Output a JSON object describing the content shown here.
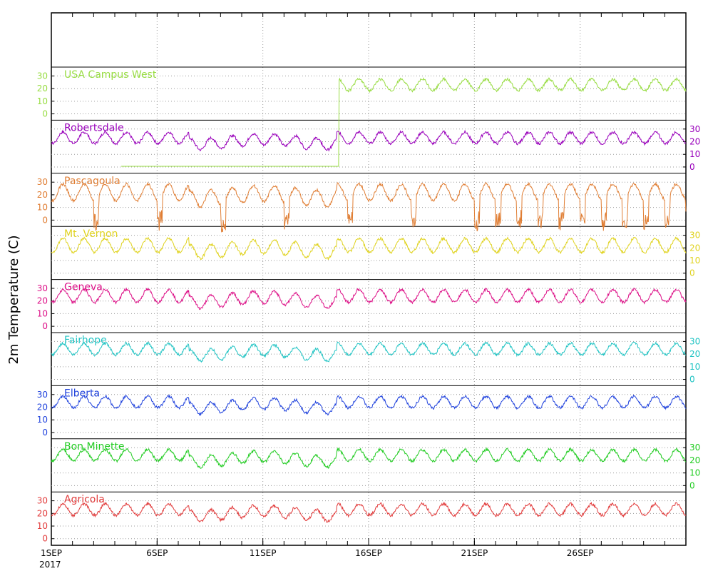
{
  "chart_data": {
    "type": "line",
    "ylabel": "2m Temperature (C)",
    "x_ticks": [
      "1SEP",
      "6SEP",
      "11SEP",
      "16SEP",
      "21SEP",
      "26SEP"
    ],
    "x_year": "2017",
    "x_range_days": [
      1,
      31
    ],
    "panel_ylim": [
      -5,
      37
    ],
    "y_ticks": [
      0,
      10,
      20,
      30
    ],
    "grid": true,
    "series": [
      {
        "name": "USA Campus West",
        "color": "#99dd44",
        "tick_side": "left",
        "base": 23,
        "amp": 4.5,
        "gap_until_day": 14.6,
        "gap_level": -40
      },
      {
        "name": "Robertsdale",
        "color": "#9900bb",
        "tick_side": "right",
        "base": 23,
        "amp": 4.5
      },
      {
        "name": "Pascagoula",
        "color": "#e07e34",
        "tick_side": "left",
        "base": 22,
        "amp": 6.5,
        "noisy": true
      },
      {
        "name": "Mt. Vernon",
        "color": "#e0d320",
        "tick_side": "right",
        "base": 22,
        "amp": 5.5
      },
      {
        "name": "Geneva",
        "color": "#dd1188",
        "tick_side": "left",
        "base": 24,
        "amp": 5
      },
      {
        "name": "Fairhope",
        "color": "#22c4c4",
        "tick_side": "right",
        "base": 24,
        "amp": 4.5
      },
      {
        "name": "Elberta",
        "color": "#2244dd",
        "tick_side": "left",
        "base": 24,
        "amp": 4.5
      },
      {
        "name": "Bon Minette",
        "color": "#22cc22",
        "tick_side": "right",
        "base": 24,
        "amp": 4.5
      },
      {
        "name": "Agricola",
        "color": "#e23c3c",
        "tick_side": "left",
        "base": 23,
        "amp": 4.5
      }
    ]
  }
}
